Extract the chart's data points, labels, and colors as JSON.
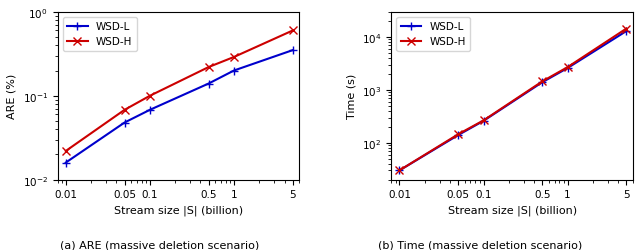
{
  "x_values": [
    0.01,
    0.05,
    0.1,
    0.5,
    1,
    5
  ],
  "are_wsd_l": [
    0.016,
    0.048,
    0.068,
    0.14,
    0.2,
    0.35
  ],
  "are_wsd_h": [
    0.022,
    0.068,
    0.1,
    0.22,
    0.29,
    0.6
  ],
  "time_wsd_l": [
    30,
    140,
    260,
    1400,
    2600,
    13000
  ],
  "time_wsd_h": [
    30,
    145,
    265,
    1450,
    2700,
    14500
  ],
  "color_l": "#0000cc",
  "color_h": "#cc0000",
  "marker_l": "+",
  "marker_h": "x",
  "xlabel": "Stream size |S| (billion)",
  "ylabel_left": "ARE (%)",
  "ylabel_right": "Time (s)",
  "label_l": "WSD-L",
  "label_h": "WSD-H",
  "caption_left": "(a) ARE (massive deletion scenario)",
  "caption_right": "(b) Time (massive deletion scenario)",
  "xlim": [
    0.008,
    6
  ],
  "are_ylim": [
    0.01,
    1.0
  ],
  "time_ylim": [
    20,
    30000
  ],
  "xticks": [
    0.01,
    0.05,
    0.1,
    0.5,
    1,
    5
  ],
  "xtick_labels": [
    "0.01",
    "0.05",
    "0.1",
    "0.5",
    "1",
    "5"
  ]
}
